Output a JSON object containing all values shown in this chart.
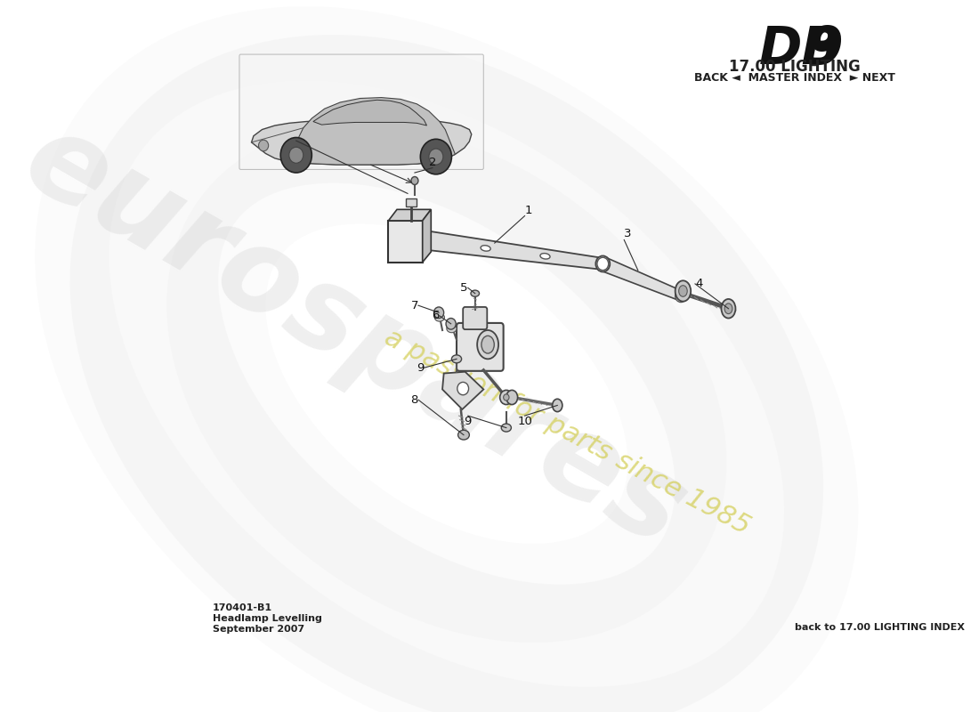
{
  "title_model": "DB 9",
  "title_section": "17.00 LIGHTING",
  "nav_text": "BACK ◄  MASTER INDEX  ► NEXT",
  "footer_left_line1": "170401-B1",
  "footer_left_line2": "Headlamp Levelling",
  "footer_left_line3": "September 2007",
  "footer_right": "back to 17.00 LIGHTING INDEX",
  "bg_color": "#ffffff",
  "watermark_text": "eurospares",
  "watermark_subtext": "a passion for parts since 1985"
}
